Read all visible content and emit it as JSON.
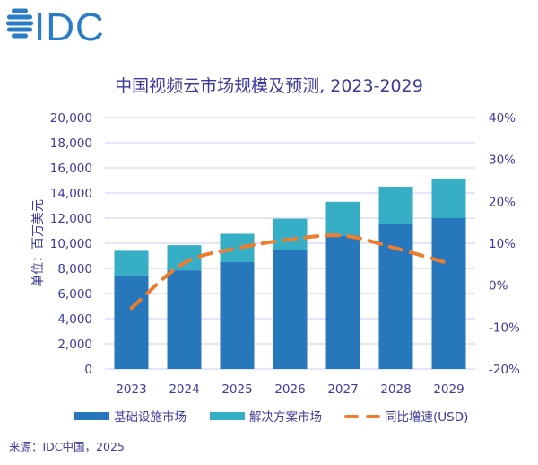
{
  "logo": {
    "text": "IDC"
  },
  "colors": {
    "infrastructure": "#2677bb",
    "solution": "#35aec6",
    "growth": "#ee7d2d",
    "text": "#3d3a9c",
    "grid": "#cdc8f2",
    "logo": "#2a7cc7"
  },
  "source": "来源：IDC中国，2025",
  "chart_data": {
    "type": "bar",
    "stacked": true,
    "title": "中国视频云市场规模及预测, 2023-2029",
    "ylabel": "单位：百万美元",
    "ylim": [
      0,
      20000
    ],
    "y_ticks": [
      "0",
      "2,000",
      "4,000",
      "6,000",
      "8,000",
      "10,000",
      "12,000",
      "14,000",
      "16,000",
      "18,000",
      "20,000"
    ],
    "y2lim": [
      -20,
      40
    ],
    "y2_ticks": [
      "-20%",
      "-10%",
      "0%",
      "10%",
      "20%",
      "30%",
      "40%"
    ],
    "grid": true,
    "legend_position": "bottom",
    "categories": [
      "2023",
      "2024",
      "2025",
      "2026",
      "2027",
      "2028",
      "2029"
    ],
    "series": [
      {
        "name": "基础设施市场",
        "type": "bar",
        "values": [
          7450,
          7850,
          8500,
          9500,
          10600,
          11550,
          12000
        ]
      },
      {
        "name": "解决方案市场",
        "type": "bar",
        "values": [
          1950,
          2000,
          2250,
          2450,
          2700,
          2950,
          3150
        ]
      },
      {
        "name": "同比增速(USD)",
        "type": "line",
        "axis": "right",
        "dashed": true,
        "values": [
          -5.5,
          5.3,
          8.8,
          10.9,
          11.8,
          8.8,
          5.2
        ]
      }
    ]
  }
}
